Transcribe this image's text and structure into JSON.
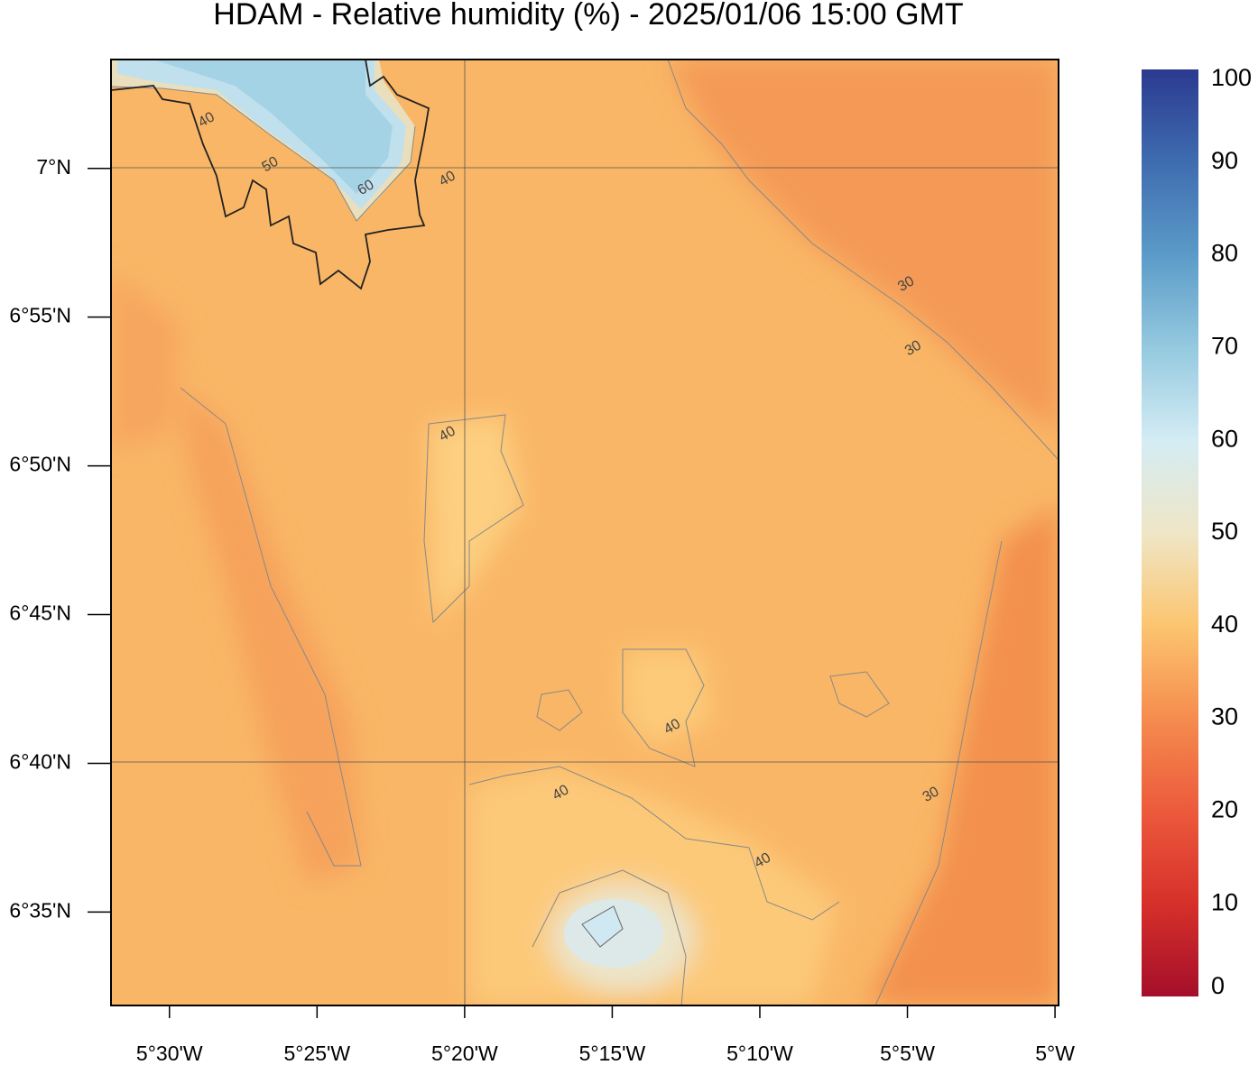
{
  "chart_data": {
    "type": "map",
    "title": "HDAM - Relative humidity (%)  -  2025/01/06  15:00 GMT",
    "xlim": [
      -5.533,
      -4.998
    ],
    "ylim": [
      6.531,
      7.061
    ],
    "xticks": [
      {
        "value": -5.5,
        "label": "5°30'W"
      },
      {
        "value": -5.416667,
        "label": "5°25'W"
      },
      {
        "value": -5.333333,
        "label": "5°20'W"
      },
      {
        "value": -5.25,
        "label": "5°15'W"
      },
      {
        "value": -5.166667,
        "label": "5°10'W"
      },
      {
        "value": -5.083333,
        "label": "5°5'W"
      },
      {
        "value": -5.0,
        "label": "5°W"
      }
    ],
    "yticks": [
      {
        "value": 7.0,
        "label": "7°N"
      },
      {
        "value": 6.916667,
        "label": "6°55'N"
      },
      {
        "value": 6.833333,
        "label": "6°50'N"
      },
      {
        "value": 6.75,
        "label": "6°45'N"
      },
      {
        "value": 6.666667,
        "label": "6°40'N"
      },
      {
        "value": 6.583333,
        "label": "6°35'N"
      }
    ],
    "contour_labels": [
      {
        "value": 40,
        "x": -5.479,
        "y": 7.027
      },
      {
        "value": 50,
        "x": -5.443,
        "y": 7.002
      },
      {
        "value": 60,
        "x": -5.389,
        "y": 6.989
      },
      {
        "value": 40,
        "x": -5.343,
        "y": 6.994
      },
      {
        "value": 30,
        "x": -5.084,
        "y": 6.935
      },
      {
        "value": 30,
        "x": -5.08,
        "y": 6.899
      },
      {
        "value": 40,
        "x": -5.343,
        "y": 6.851
      },
      {
        "value": 40,
        "x": -5.216,
        "y": 6.687
      },
      {
        "value": 40,
        "x": -5.279,
        "y": 6.65
      },
      {
        "value": 40,
        "x": -5.165,
        "y": 6.612
      },
      {
        "value": 30,
        "x": -5.07,
        "y": 6.649
      }
    ],
    "colorbar": {
      "range": [
        0,
        100
      ],
      "ticks": [
        0,
        10,
        20,
        30,
        40,
        50,
        60,
        70,
        80,
        90,
        100
      ],
      "colors": [
        "#a50f2a",
        "#d6302a",
        "#ec5a3c",
        "#f58c4e",
        "#fcc570",
        "#efe6c6",
        "#d4ecf4",
        "#94c9df",
        "#5b9bc8",
        "#3f6cb0",
        "#2b3a8f"
      ]
    }
  }
}
